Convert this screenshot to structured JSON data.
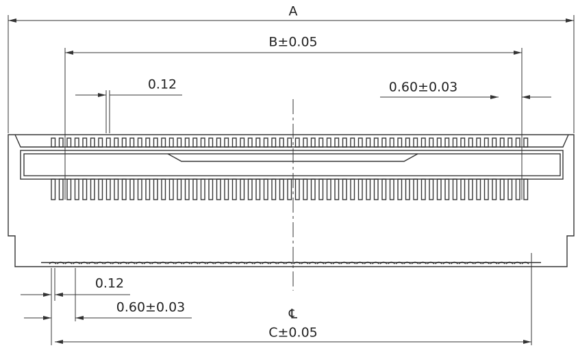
{
  "dimensions": {
    "a": "A",
    "b": "B±0.05",
    "pin_width_top": "0.12",
    "pitch_top": "0.60±0.03",
    "pin_width_bottom": "0.12",
    "pitch_bottom": "0.60±0.03",
    "c": "C±0.05"
  },
  "centerline_symbol": "℄"
}
